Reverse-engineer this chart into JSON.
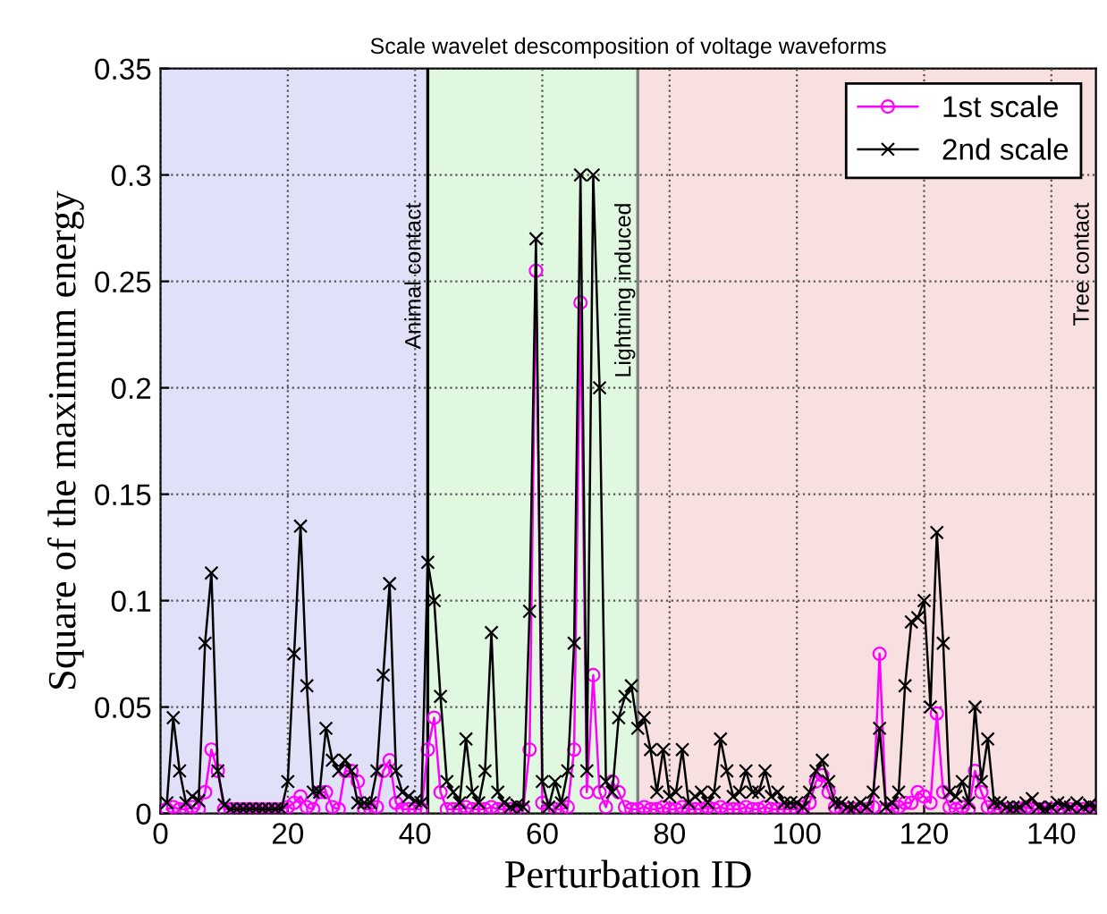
{
  "chart_data": {
    "type": "line",
    "title": "Scale wavelet descomposition of voltage waveforms",
    "xlabel": "Perturbation ID",
    "ylabel": "Square of the maximum energy",
    "x": [
      1,
      2,
      3,
      4,
      5,
      6,
      7,
      8,
      9,
      10,
      11,
      12,
      13,
      14,
      15,
      16,
      17,
      18,
      19,
      20,
      21,
      22,
      23,
      24,
      25,
      26,
      27,
      28,
      29,
      30,
      31,
      32,
      33,
      34,
      35,
      36,
      37,
      38,
      39,
      40,
      41,
      42,
      43,
      44,
      45,
      46,
      47,
      48,
      49,
      50,
      51,
      52,
      53,
      54,
      55,
      56,
      57,
      58,
      59,
      60,
      61,
      62,
      63,
      64,
      65,
      66,
      67,
      68,
      69,
      70,
      71,
      72,
      73,
      74,
      75,
      76,
      77,
      78,
      79,
      80,
      81,
      82,
      83,
      84,
      85,
      86,
      87,
      88,
      89,
      90,
      91,
      92,
      93,
      94,
      95,
      96,
      97,
      98,
      99,
      100,
      101,
      102,
      103,
      104,
      105,
      106,
      107,
      108,
      109,
      110,
      111,
      112,
      113,
      114,
      115,
      116,
      117,
      118,
      119,
      120,
      121,
      122,
      123,
      124,
      125,
      126,
      127,
      128,
      129,
      130,
      131,
      132,
      133,
      134,
      135,
      136,
      137,
      138,
      139,
      140,
      141,
      142,
      143,
      144,
      145,
      146,
      147
    ],
    "series": [
      {
        "name": "1st scale",
        "color": "#ff00ff",
        "marker": "circle",
        "values": [
          0.002,
          0.003,
          0.002,
          0.002,
          0.003,
          0.002,
          0.01,
          0.03,
          0.02,
          0.002,
          0.002,
          0.002,
          0.002,
          0.002,
          0.002,
          0.002,
          0.002,
          0.002,
          0.002,
          0.003,
          0.005,
          0.008,
          0.003,
          0.002,
          0.01,
          0.01,
          0.003,
          0.002,
          0.02,
          0.02,
          0.015,
          0.002,
          0.002,
          0.003,
          0.02,
          0.025,
          0.005,
          0.002,
          0.002,
          0.002,
          0.002,
          0.03,
          0.045,
          0.01,
          0.002,
          0.002,
          0.002,
          0.003,
          0.002,
          0.002,
          0.002,
          0.003,
          0.002,
          0.002,
          0.002,
          0.002,
          0.002,
          0.03,
          0.255,
          0.005,
          0.002,
          0.002,
          0.002,
          0.003,
          0.03,
          0.24,
          0.01,
          0.065,
          0.01,
          0.003,
          0.015,
          0.01,
          0.003,
          0.002,
          0.002,
          0.003,
          0.002,
          0.002,
          0.003,
          0.002,
          0.002,
          0.003,
          0.002,
          0.002,
          0.002,
          0.003,
          0.002,
          0.003,
          0.002,
          0.002,
          0.002,
          0.003,
          0.002,
          0.002,
          0.003,
          0.002,
          0.002,
          0.002,
          0.002,
          0.002,
          0.003,
          0.005,
          0.015,
          0.018,
          0.01,
          0.003,
          0.002,
          0.002,
          0.002,
          0.002,
          0.002,
          0.003,
          0.075,
          0.002,
          0.002,
          0.003,
          0.005,
          0.005,
          0.01,
          0.008,
          0.005,
          0.047,
          0.01,
          0.003,
          0.002,
          0.003,
          0.002,
          0.02,
          0.01,
          0.003,
          0.002,
          0.002,
          0.002,
          0.002,
          0.002,
          0.003,
          0.002,
          0.002,
          0.002,
          0.002,
          0.002,
          0.002,
          0.002,
          0.002,
          0.002,
          0.002,
          0.002
        ]
      },
      {
        "name": "2nd scale",
        "color": "#000000",
        "marker": "cross",
        "values": [
          0.005,
          0.045,
          0.02,
          0.005,
          0.008,
          0.006,
          0.08,
          0.113,
          0.02,
          0.004,
          0.002,
          0.002,
          0.002,
          0.002,
          0.002,
          0.002,
          0.002,
          0.002,
          0.002,
          0.015,
          0.075,
          0.135,
          0.06,
          0.01,
          0.01,
          0.04,
          0.025,
          0.02,
          0.025,
          0.02,
          0.005,
          0.005,
          0.005,
          0.02,
          0.065,
          0.108,
          0.02,
          0.01,
          0.008,
          0.006,
          0.005,
          0.118,
          0.1,
          0.055,
          0.015,
          0.01,
          0.005,
          0.035,
          0.01,
          0.005,
          0.02,
          0.085,
          0.01,
          0.005,
          0.003,
          0.004,
          0.003,
          0.095,
          0.27,
          0.015,
          0.003,
          0.015,
          0.005,
          0.02,
          0.08,
          0.3,
          0.02,
          0.3,
          0.2,
          0.015,
          0.01,
          0.045,
          0.055,
          0.06,
          0.04,
          0.045,
          0.03,
          0.01,
          0.03,
          0.008,
          0.01,
          0.03,
          0.005,
          0.008,
          0.01,
          0.005,
          0.01,
          0.035,
          0.02,
          0.008,
          0.01,
          0.02,
          0.01,
          0.01,
          0.02,
          0.008,
          0.01,
          0.005,
          0.005,
          0.005,
          0.003,
          0.01,
          0.02,
          0.025,
          0.015,
          0.005,
          0.005,
          0.003,
          0.003,
          0.005,
          0.003,
          0.01,
          0.04,
          0.003,
          0.005,
          0.01,
          0.06,
          0.09,
          0.092,
          0.1,
          0.05,
          0.132,
          0.08,
          0.01,
          0.008,
          0.015,
          0.005,
          0.05,
          0.015,
          0.035,
          0.005,
          0.005,
          0.003,
          0.003,
          0.003,
          0.005,
          0.007,
          0.003,
          0.002,
          0.003,
          0.005,
          0.004,
          0.003,
          0.005,
          0.003,
          0.004,
          0.003
        ]
      }
    ],
    "bands": [
      {
        "axis": "x",
        "from": 0,
        "to": 42,
        "label": "Animal contact",
        "color": "#e0e0f8"
      },
      {
        "axis": "x",
        "from": 42,
        "to": 75,
        "label": "Lightning induced",
        "color": "#e0f8e0"
      },
      {
        "axis": "x",
        "from": 75,
        "to": 147,
        "label": "Tree contact",
        "color": "#f8e0e0"
      }
    ],
    "ref_lines": [
      {
        "axis": "x",
        "value": 42,
        "color": "#000000"
      },
      {
        "axis": "x",
        "value": 75,
        "color": "#808080"
      }
    ],
    "xlim": [
      0,
      147
    ],
    "ylim": [
      0,
      0.35
    ],
    "xticks": [
      0,
      20,
      40,
      60,
      80,
      100,
      120,
      140
    ],
    "yticks": [
      0,
      0.05,
      0.1,
      0.15,
      0.2,
      0.25,
      0.3,
      0.35
    ],
    "grid": true,
    "legend": "top right",
    "line_style": "solid"
  }
}
